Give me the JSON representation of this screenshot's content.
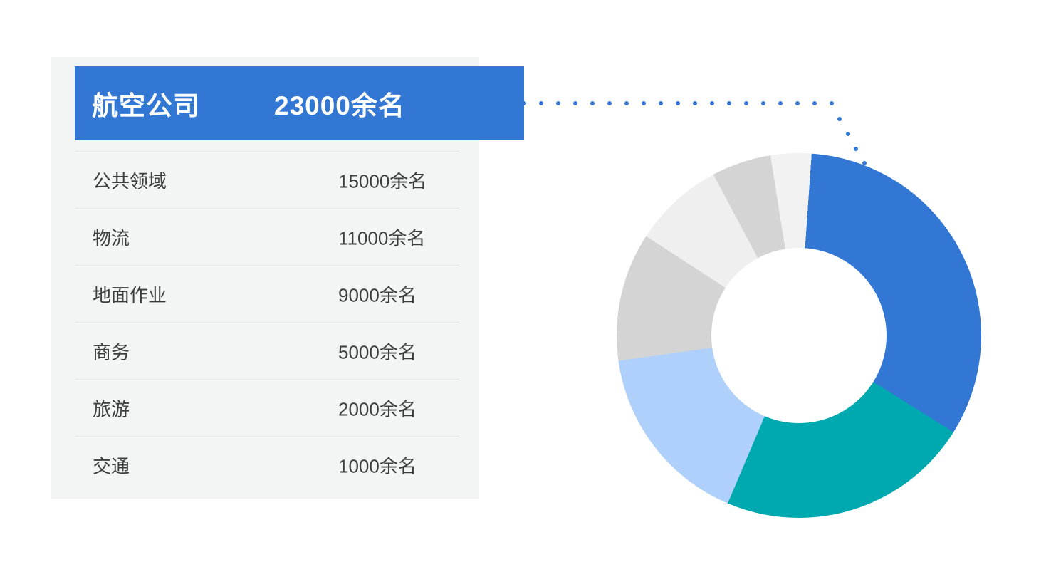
{
  "accent_color": "#3377d4",
  "header": {
    "label": "航空公司",
    "value": "23000余名"
  },
  "table": {
    "rows": [
      {
        "label": "公共领域",
        "value": "15000余名"
      },
      {
        "label": "物流",
        "value": "11000余名"
      },
      {
        "label": "地面作业",
        "value": "9000余名"
      },
      {
        "label": "商务",
        "value": "5000余名"
      },
      {
        "label": "旅游",
        "value": "2000余名"
      },
      {
        "label": "交通",
        "value": "1000余名"
      }
    ]
  },
  "chart_data": {
    "type": "pie",
    "subtype": "donut",
    "legend_position": "none",
    "start_angle_deg": 4,
    "inner_radius_ratio": 0.48,
    "clockwise": true,
    "segments": [
      {
        "label": "航空公司",
        "value": 23000,
        "display": "23000余名",
        "color": "#3377d4",
        "angle_deg": 118
      },
      {
        "label": "公共领域",
        "value": 15000,
        "display": "15000余名",
        "color": "#00a9b0",
        "angle_deg": 81
      },
      {
        "label": "物流",
        "value": 11000,
        "display": "11000余名",
        "color": "#aed0fa",
        "angle_deg": 59
      },
      {
        "label": "地面作业",
        "value": 9000,
        "display": "9000余名",
        "color": "#d4d4d4",
        "angle_deg": 41
      },
      {
        "label": "商务",
        "value": 5000,
        "display": "5000余名",
        "color": "#efeff0",
        "angle_deg": 29
      },
      {
        "label": "旅游",
        "value": 2000,
        "display": "2000余名",
        "color": "#d4d4d4",
        "angle_deg": 19
      },
      {
        "label": "交通",
        "value": 1000,
        "display": "1000余名",
        "color": "#f2f2f3",
        "angle_deg": 13
      }
    ]
  }
}
